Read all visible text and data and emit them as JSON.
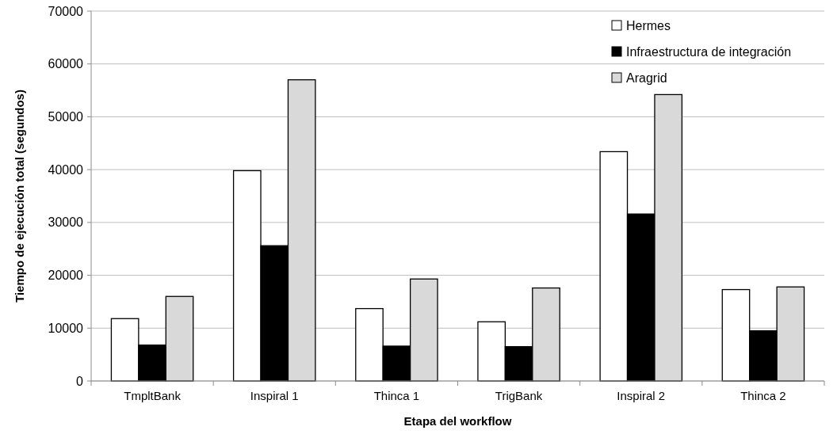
{
  "chart_data": {
    "type": "bar",
    "xlabel": "Etapa del workflow",
    "ylabel": "Tiempo de ejecución total (segundos)",
    "categories": [
      "TmpltBank",
      "Inspiral 1",
      "Thinca 1",
      "TrigBank",
      "Inspiral 2",
      "Thinca 2"
    ],
    "series": [
      {
        "name": "Hermes",
        "color": "#ffffff",
        "values": [
          11800,
          39800,
          13700,
          11200,
          43400,
          17300
        ]
      },
      {
        "name": "Infraestructura de integración",
        "color": "#000000",
        "values": [
          6800,
          25600,
          6600,
          6500,
          31600,
          9500
        ]
      },
      {
        "name": "Aragrid",
        "color": "#d9d9d9",
        "values": [
          16000,
          57000,
          19300,
          17600,
          54200,
          17800
        ]
      }
    ],
    "ylim": [
      0,
      70000
    ],
    "yticks": [
      0,
      10000,
      20000,
      30000,
      40000,
      50000,
      60000,
      70000
    ],
    "grid": "y",
    "legend": "top right"
  }
}
